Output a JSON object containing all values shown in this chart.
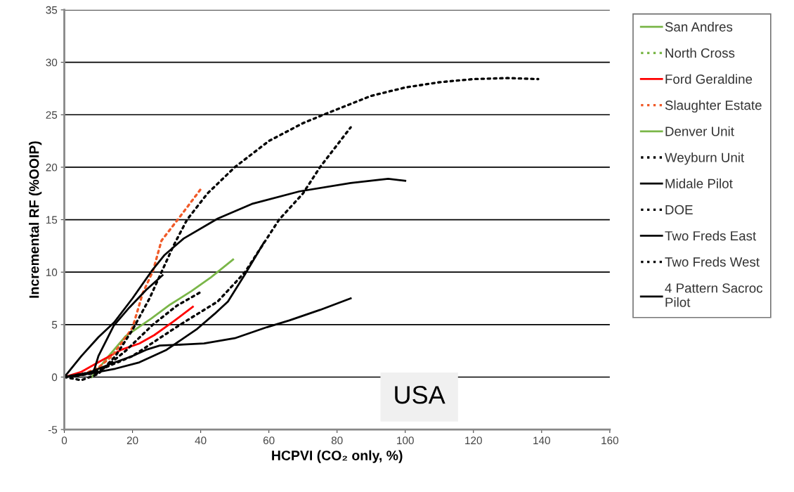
{
  "chart_data": {
    "type": "line",
    "xlabel": "HCPVI (CO₂ only, %)",
    "ylabel": "Incremental RF (%OOIP)",
    "xlim": [
      0,
      160
    ],
    "xticks": [
      0,
      20,
      40,
      60,
      80,
      100,
      120,
      140,
      160
    ],
    "ylim": [
      -5,
      35
    ],
    "yticks": [
      -5,
      0,
      5,
      10,
      15,
      20,
      25,
      30,
      35
    ],
    "grid": "y",
    "legend": "right",
    "marker": "none",
    "annotations": [
      "USA"
    ],
    "series": [
      {
        "name": "San Andres",
        "color": "#7ab648",
        "line_style": "solid",
        "x": [
          8,
          13,
          18,
          25.6,
          31,
          37.3,
          43,
          49.5
        ],
        "values": [
          0,
          2,
          3.9,
          5.6,
          6.9,
          8.2,
          9.5,
          11.2
        ]
      },
      {
        "name": "North Cross",
        "color": "#7ab648",
        "line_style": "dotted"
      },
      {
        "name": "Ford Geraldine",
        "color": "#ff0000",
        "line_style": "solid",
        "x": [
          0,
          5,
          10.5,
          16.7,
          22,
          26.4,
          32,
          37.7
        ],
        "values": [
          0,
          0.5,
          1.5,
          2.6,
          3.2,
          4,
          5.3,
          6.7
        ]
      },
      {
        "name": "Slaughter Estate",
        "color": "#f05a28",
        "line_style": "dotted",
        "x": [
          0,
          5,
          10,
          14,
          20,
          23,
          26,
          28.5,
          33.5,
          40
        ],
        "values": [
          0,
          0.2,
          0.9,
          2,
          4.7,
          8,
          10.1,
          13,
          15.1,
          17.9
        ]
      },
      {
        "name": "Denver Unit",
        "color": "#7ab648",
        "line_style": "solid"
      },
      {
        "name": "Weyburn Unit",
        "color": "#000000",
        "line_style": "dotted",
        "x": [
          0,
          5,
          10,
          15,
          20,
          25,
          28.5,
          32,
          36,
          42,
          50,
          60,
          70,
          76,
          90,
          100,
          110,
          120,
          130,
          139
        ],
        "values": [
          0,
          -0.3,
          0.3,
          2,
          4.5,
          7.5,
          10,
          12.5,
          15,
          17.5,
          20,
          22.5,
          24.2,
          25,
          26.8,
          27.6,
          28.1,
          28.4,
          28.5,
          28.4
        ]
      },
      {
        "name": "Midale Pilot",
        "color": "#000000",
        "line_style": "solid",
        "x": [
          0,
          5,
          10,
          14.6,
          20,
          25.6,
          29.3,
          35,
          45,
          55,
          69,
          84,
          95,
          100
        ],
        "values": [
          0,
          2,
          3.8,
          5.2,
          7.5,
          10.1,
          11.6,
          13.2,
          15.1,
          16.5,
          17.7,
          18.5,
          18.9,
          18.7
        ]
      },
      {
        "name": "DOE",
        "color": "#000000",
        "line_style": "dotted",
        "x": [
          0,
          9,
          20,
          34,
          45,
          53,
          63,
          70,
          75,
          84
        ],
        "values": [
          0,
          0.5,
          2,
          5,
          7.2,
          10,
          15,
          17.5,
          20,
          23.8
        ]
      },
      {
        "name": "Two Freds East",
        "color": "#000000",
        "line_style": "solid",
        "x": [
          0,
          5,
          8.6,
          10,
          14.5,
          19,
          24,
          28.8
        ],
        "values": [
          0,
          0.2,
          0.5,
          2,
          4.9,
          6.6,
          8.3,
          9.7
        ]
      },
      {
        "name": "Two Freds West",
        "color": "#000000",
        "line_style": "dotted",
        "x": [
          0,
          10,
          18,
          26,
          33,
          40
        ],
        "values": [
          0,
          0.4,
          2.5,
          5,
          6.8,
          8.1
        ]
      },
      {
        "name": "4 Pattern Sacroc\nPilot",
        "color": "#000000",
        "line_style": "solid",
        "x": [
          0,
          7,
          15,
          22,
          30,
          39,
          44,
          48,
          53,
          58.5
        ],
        "values": [
          0,
          0.3,
          0.8,
          1.4,
          2.6,
          4.6,
          6,
          7.2,
          9.8,
          12.8
        ]
      },
      {
        "color": "#000000",
        "line_style": "solid",
        "x": [
          0,
          7,
          14,
          20,
          24,
          28,
          35,
          41,
          50,
          59.4,
          66,
          75,
          84
        ],
        "values": [
          0,
          0.4,
          1.3,
          2,
          2.6,
          3,
          3.1,
          3.2,
          3.7,
          4.75,
          5.4,
          6.4,
          7.5
        ]
      }
    ]
  }
}
